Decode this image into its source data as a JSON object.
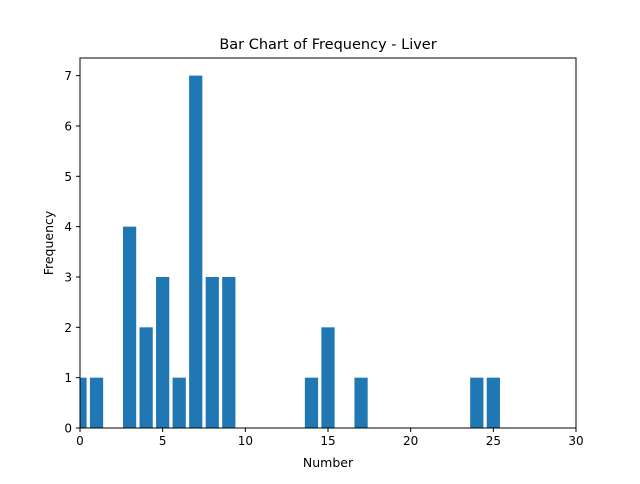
{
  "chart_data": {
    "type": "bar",
    "title": "Bar Chart of Frequency - Liver",
    "xlabel": "Number",
    "ylabel": "Frequency",
    "x": [
      0,
      1,
      3,
      4,
      5,
      6,
      7,
      8,
      9,
      14,
      15,
      17,
      24,
      25
    ],
    "values": [
      1,
      1,
      4,
      2,
      3,
      1,
      7,
      3,
      3,
      1,
      2,
      1,
      1,
      1
    ],
    "xlim": [
      0,
      30
    ],
    "ylim": [
      0,
      7.35
    ],
    "xticks": [
      0,
      5,
      10,
      15,
      20,
      25,
      30
    ],
    "yticks": [
      0,
      1,
      2,
      3,
      4,
      5,
      6,
      7
    ],
    "bar_width": 0.8,
    "bar_color": "#1f77b4",
    "grid": false,
    "legend": "none"
  }
}
